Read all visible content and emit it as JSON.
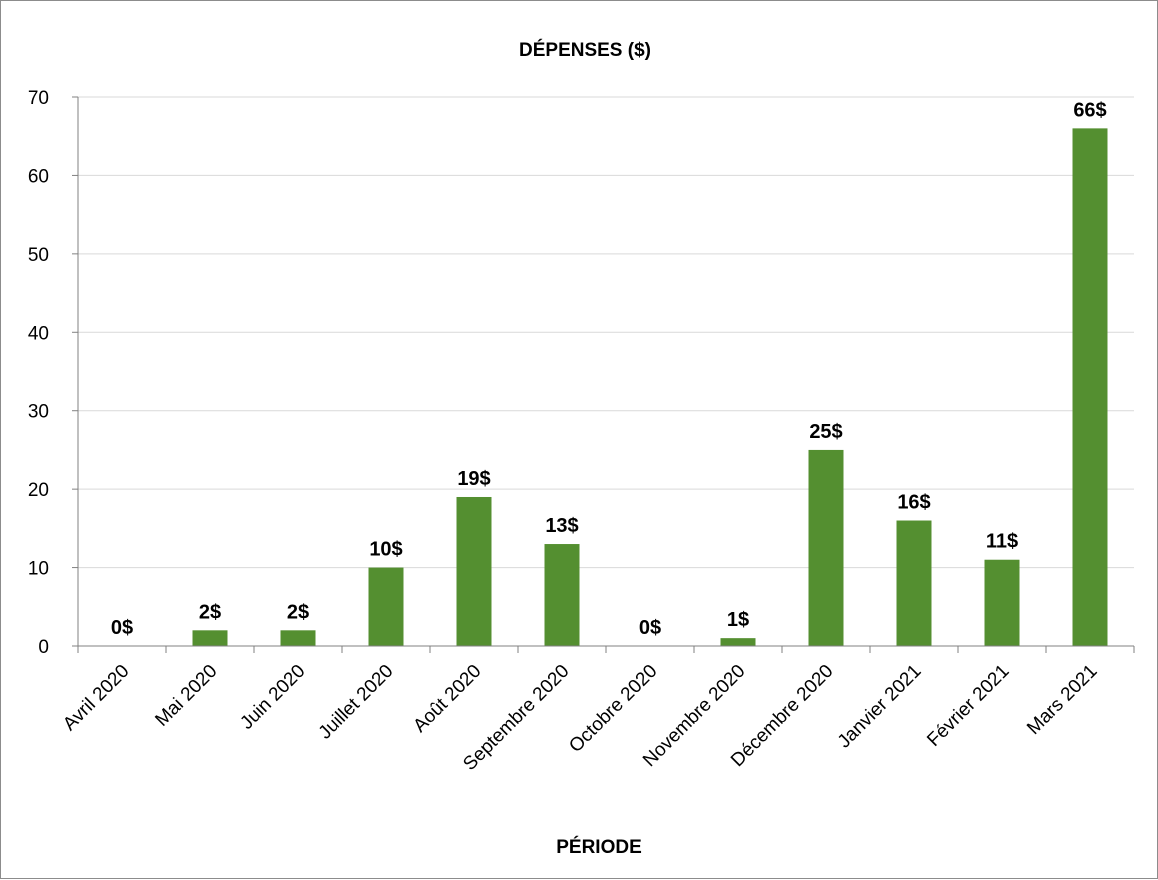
{
  "chart_data": {
    "type": "bar",
    "title": "DÉPENSES ($)",
    "xlabel": "PÉRIODE",
    "ylabel": "",
    "categories": [
      "Avril 2020",
      "Mai 2020",
      "Juin 2020",
      "Juillet 2020",
      "Août 2020",
      "Septembre 2020",
      "Octobre 2020",
      "Novembre 2020",
      "Décembre 2020",
      "Janvier 2021",
      "Février 2021",
      "Mars 2021"
    ],
    "values": [
      0,
      2,
      2,
      10,
      19,
      13,
      0,
      1,
      25,
      16,
      11,
      66
    ],
    "data_labels": [
      "0$",
      "2$",
      "2$",
      "10$",
      "19$",
      "13$",
      "0$",
      "1$",
      "25$",
      "16$",
      "11$",
      "66$"
    ],
    "ylim": [
      0,
      70
    ],
    "yticks": [
      0,
      10,
      20,
      30,
      40,
      50,
      60,
      70
    ],
    "grid": true,
    "legend": "none",
    "bar_color": "#548f30",
    "grid_color": "#d9d9d9",
    "axis_color": "#808080"
  }
}
